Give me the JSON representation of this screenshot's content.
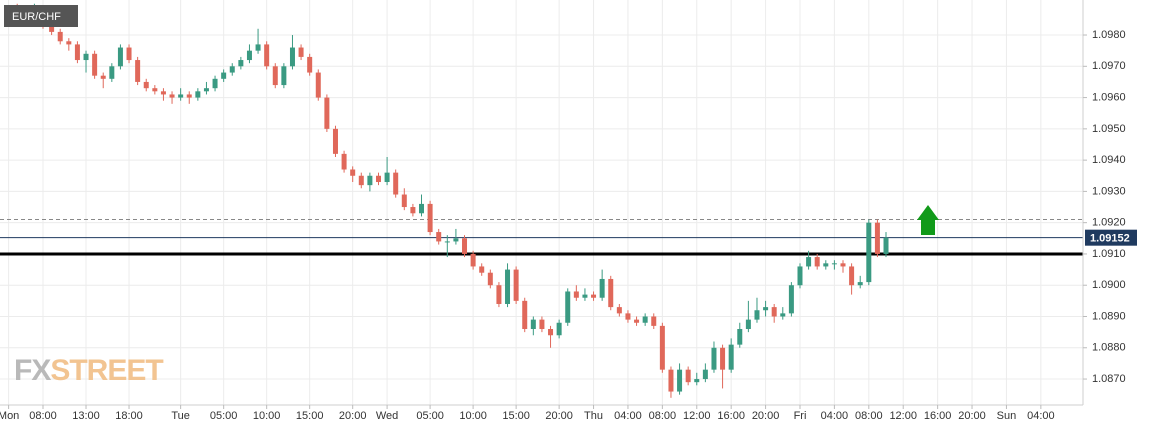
{
  "chart_data": {
    "type": "candlestick",
    "title": "EUR/CHF",
    "watermark": [
      "FX",
      "STREET"
    ],
    "x": [
      5,
      6,
      7,
      8,
      9,
      10,
      11,
      12,
      13,
      14,
      15,
      16,
      17,
      18,
      19,
      20,
      21,
      22,
      23,
      24,
      25,
      26,
      27,
      28,
      29,
      30,
      31,
      32,
      33,
      34,
      35,
      36,
      37,
      38,
      39,
      40,
      41,
      42,
      43,
      44,
      45,
      46,
      47,
      48,
      49,
      50,
      51,
      52,
      53,
      54,
      55,
      56,
      57,
      58,
      59,
      60,
      61,
      62,
      63,
      64,
      65,
      66,
      67,
      68,
      69,
      70,
      71,
      72,
      73,
      74,
      75,
      76,
      77,
      78,
      79,
      80,
      81,
      82,
      83,
      84,
      85,
      86,
      87,
      88,
      89,
      90,
      91,
      92,
      93,
      94,
      95,
      96,
      97,
      98,
      99,
      100,
      101,
      102,
      103,
      104,
      105,
      106
    ],
    "open": [
      1.0988,
      1.0986,
      1.0985,
      1.0988,
      1.0983,
      1.0981,
      1.0978,
      1.0977,
      1.0972,
      1.0974,
      1.0967,
      1.0966,
      1.097,
      1.0976,
      1.0972,
      1.0965,
      1.0963,
      1.0962,
      1.0961,
      1.096,
      1.0961,
      1.096,
      1.0962,
      1.0963,
      1.0966,
      1.0968,
      1.097,
      1.0972,
      1.0975,
      1.0977,
      1.097,
      1.0964,
      1.097,
      1.0976,
      1.0973,
      1.0968,
      1.096,
      1.095,
      1.0942,
      1.0937,
      1.0935,
      1.0932,
      1.0935,
      1.0933,
      1.0936,
      1.0929,
      1.0925,
      1.0923,
      1.0926,
      1.0917,
      1.0914,
      1.0914,
      1.0915,
      1.091,
      1.0906,
      1.0904,
      1.09,
      1.0894,
      1.0905,
      1.0895,
      1.0886,
      1.0889,
      1.0886,
      1.0884,
      1.0888,
      1.0898,
      1.0896,
      1.0897,
      1.0896,
      1.0902,
      1.0893,
      1.0891,
      1.0889,
      1.0888,
      1.089,
      1.0887,
      1.0873,
      1.0866,
      1.0873,
      1.0869,
      1.087,
      1.0873,
      1.088,
      1.0873,
      1.0881,
      1.0886,
      1.0889,
      1.0892,
      1.0893,
      1.089,
      1.0891,
      1.09,
      1.0906,
      1.0909,
      1.0906,
      1.0907,
      1.0907,
      1.0906,
      1.09,
      1.0901,
      1.092,
      1.091
    ],
    "high": [
      1.099,
      1.0987,
      1.099,
      1.0989,
      1.0985,
      1.0982,
      1.0979,
      1.0978,
      1.0975,
      1.0975,
      1.0968,
      1.0971,
      1.0977,
      1.0977,
      1.0973,
      1.0966,
      1.0964,
      1.0963,
      1.0962,
      1.0963,
      1.0962,
      1.0963,
      1.0965,
      1.0967,
      1.0969,
      1.0971,
      1.0973,
      1.0977,
      1.0982,
      1.0978,
      1.0971,
      1.0971,
      1.098,
      1.0977,
      1.0974,
      1.0969,
      1.0961,
      1.0951,
      1.0943,
      1.0938,
      1.0936,
      1.0936,
      1.0936,
      1.0941,
      1.0937,
      1.0931,
      1.0926,
      1.0929,
      1.0927,
      1.0918,
      1.0916,
      1.0918,
      1.0916,
      1.0911,
      1.0907,
      1.0905,
      1.0901,
      1.0907,
      1.0906,
      1.0896,
      1.089,
      1.089,
      1.0887,
      1.0889,
      1.0899,
      1.09,
      1.0899,
      1.0898,
      1.0905,
      1.0903,
      1.0894,
      1.0892,
      1.089,
      1.0891,
      1.0891,
      1.0888,
      1.0874,
      1.0875,
      1.0874,
      1.0872,
      1.0875,
      1.0882,
      1.0881,
      1.0883,
      1.0888,
      1.0895,
      1.0896,
      1.0895,
      1.0894,
      1.0893,
      1.0901,
      1.0907,
      1.0911,
      1.091,
      1.0908,
      1.0908,
      1.0908,
      1.0907,
      1.0903,
      1.0921,
      1.0921,
      1.0917
    ],
    "low": [
      1.0984,
      1.0983,
      1.0984,
      1.0982,
      1.098,
      1.0977,
      1.0975,
      1.0971,
      1.0968,
      1.0966,
      1.0963,
      1.0965,
      1.0969,
      1.0971,
      1.0964,
      1.0962,
      1.0961,
      1.0959,
      1.0958,
      1.0959,
      1.0958,
      1.0959,
      1.0961,
      1.0962,
      1.0965,
      1.0967,
      1.0969,
      1.0971,
      1.0974,
      1.0969,
      1.0963,
      1.0963,
      1.0969,
      1.0972,
      1.0967,
      1.0959,
      1.0949,
      1.0941,
      1.0936,
      1.0933,
      1.0931,
      1.093,
      1.0932,
      1.0932,
      1.0928,
      1.0924,
      1.0922,
      1.0922,
      1.0916,
      1.0913,
      1.0909,
      1.0913,
      1.0909,
      1.0905,
      1.0903,
      1.0899,
      1.0893,
      1.0893,
      1.0894,
      1.0885,
      1.0884,
      1.0885,
      1.088,
      1.0883,
      1.0887,
      1.0895,
      1.0895,
      1.0895,
      1.0895,
      1.0892,
      1.089,
      1.0888,
      1.0887,
      1.0887,
      1.0886,
      1.0872,
      1.0864,
      1.0865,
      1.0868,
      1.0868,
      1.0869,
      1.0872,
      1.0867,
      1.0872,
      1.088,
      1.0885,
      1.0888,
      1.089,
      1.0888,
      1.0889,
      1.089,
      1.0899,
      1.0905,
      1.0905,
      1.0905,
      1.0905,
      1.0904,
      1.0897,
      1.0899,
      1.09,
      1.0909,
      1.0909
    ],
    "close": [
      1.0986,
      1.0985,
      1.0988,
      1.0983,
      1.0981,
      1.0978,
      1.0977,
      1.0972,
      1.0974,
      1.0967,
      1.0966,
      1.097,
      1.0976,
      1.0972,
      1.0965,
      1.0963,
      1.0962,
      1.0961,
      1.096,
      1.0961,
      1.096,
      1.0962,
      1.0963,
      1.0966,
      1.0968,
      1.097,
      1.0972,
      1.0975,
      1.0977,
      1.097,
      1.0964,
      1.097,
      1.0976,
      1.0973,
      1.0968,
      1.096,
      1.095,
      1.0942,
      1.0937,
      1.0935,
      1.0932,
      1.0935,
      1.0933,
      1.0936,
      1.0929,
      1.0925,
      1.0923,
      1.0926,
      1.0917,
      1.0914,
      1.0914,
      1.0915,
      1.091,
      1.0906,
      1.0904,
      1.09,
      1.0894,
      1.0905,
      1.0895,
      1.0886,
      1.0889,
      1.0886,
      1.0884,
      1.0888,
      1.0898,
      1.0896,
      1.0897,
      1.0896,
      1.0902,
      1.0893,
      1.0891,
      1.0889,
      1.0888,
      1.089,
      1.0887,
      1.0873,
      1.0866,
      1.0873,
      1.0869,
      1.087,
      1.0873,
      1.088,
      1.0873,
      1.0881,
      1.0886,
      1.0889,
      1.0892,
      1.0893,
      1.089,
      1.0891,
      1.09,
      1.0906,
      1.0909,
      1.0906,
      1.0907,
      1.0907,
      1.0906,
      1.09,
      1.0901,
      1.092,
      1.091,
      1.09152
    ],
    "up_color": "#3a9a82",
    "down_color": "#e0685a",
    "last_price": 1.09152,
    "last_price_color": "#1f3a5f",
    "levels": [
      {
        "value": 1.0921,
        "style": "dashed",
        "color": "#888888"
      },
      {
        "value": 1.091,
        "style": "solid",
        "color": "#000000"
      }
    ],
    "xlim": [
      3,
      128.9
    ],
    "ylim": [
      1.08617,
      1.09912
    ],
    "xticks": [
      {
        "value": 4,
        "label": "Mon"
      },
      {
        "value": 8,
        "label": "08:00"
      },
      {
        "value": 13,
        "label": "13:00"
      },
      {
        "value": 18,
        "label": "18:00"
      },
      {
        "value": 24,
        "label": "Tue"
      },
      {
        "value": 29,
        "label": "05:00"
      },
      {
        "value": 34,
        "label": "10:00"
      },
      {
        "value": 39,
        "label": "15:00"
      },
      {
        "value": 44,
        "label": "20:00"
      },
      {
        "value": 48,
        "label": "Wed"
      },
      {
        "value": 53,
        "label": "05:00"
      },
      {
        "value": 58,
        "label": "10:00"
      },
      {
        "value": 63,
        "label": "15:00"
      },
      {
        "value": 68,
        "label": "20:00"
      },
      {
        "value": 72,
        "label": "Thu"
      },
      {
        "value": 76,
        "label": "04:00"
      },
      {
        "value": 80,
        "label": "08:00"
      },
      {
        "value": 84,
        "label": "12:00"
      },
      {
        "value": 88,
        "label": "16:00"
      },
      {
        "value": 92,
        "label": "20:00"
      },
      {
        "value": 96,
        "label": "Fri"
      },
      {
        "value": 100,
        "label": "04:00"
      },
      {
        "value": 104,
        "label": "08:00"
      },
      {
        "value": 108,
        "label": "12:00"
      },
      {
        "value": 112,
        "label": "16:00"
      },
      {
        "value": 116,
        "label": "20:00"
      },
      {
        "value": 120,
        "label": "Sun"
      },
      {
        "value": 124,
        "label": "04:00"
      }
    ],
    "yticks": [
      {
        "value": 1.087,
        "label": "1.0870"
      },
      {
        "value": 1.088,
        "label": "1.0880"
      },
      {
        "value": 1.089,
        "label": "1.0890"
      },
      {
        "value": 1.09,
        "label": "1.0900"
      },
      {
        "value": 1.091,
        "label": "1.0910"
      },
      {
        "value": 1.092,
        "label": "1.0920"
      },
      {
        "value": 1.093,
        "label": "1.0930"
      },
      {
        "value": 1.094,
        "label": "1.0940"
      },
      {
        "value": 1.095,
        "label": "1.0950"
      },
      {
        "value": 1.096,
        "label": "1.0960"
      },
      {
        "value": 1.097,
        "label": "1.0970"
      },
      {
        "value": 1.098,
        "label": "1.0980"
      }
    ],
    "grid": true
  }
}
